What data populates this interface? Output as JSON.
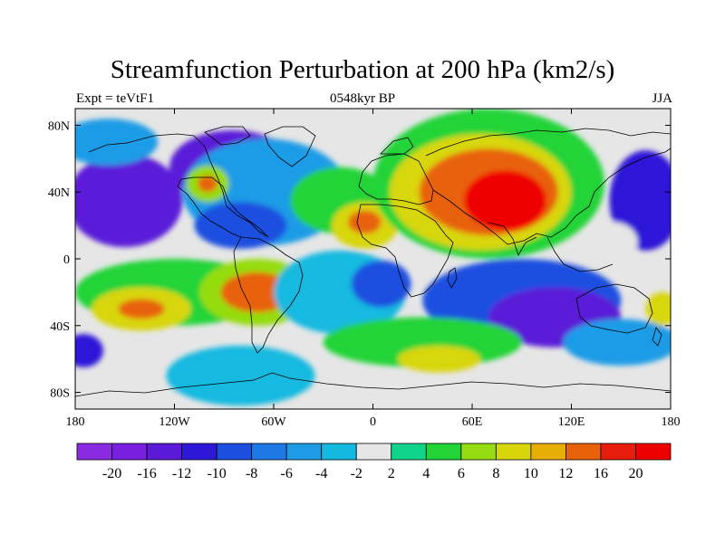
{
  "title": "Streamfunction Perturbation at 200 hPa (km2/s)",
  "subtitle_left": "Expt = teVtF1",
  "subtitle_center": "0548kyr BP",
  "subtitle_right": "JJA",
  "map": {
    "projection": "cylindrical equidistant",
    "lon_range": [
      -180,
      180
    ],
    "lat_range": [
      -90,
      90
    ],
    "x_ticks": [
      {
        "lon": -180,
        "label": "180"
      },
      {
        "lon": -120,
        "label": "120W"
      },
      {
        "lon": -60,
        "label": "60W"
      },
      {
        "lon": 0,
        "label": "0"
      },
      {
        "lon": 60,
        "label": "60E"
      },
      {
        "lon": 120,
        "label": "120E"
      },
      {
        "lon": 180,
        "label": "180"
      }
    ],
    "y_ticks": [
      {
        "lat": 80,
        "label": "80N"
      },
      {
        "lat": 40,
        "label": "40N"
      },
      {
        "lat": 0,
        "label": "0"
      },
      {
        "lat": -40,
        "label": "40S"
      },
      {
        "lat": -80,
        "label": "80S"
      }
    ],
    "background_color": "#e6e6e6"
  },
  "colorbar": {
    "labels": [
      "-20",
      "-16",
      "-12",
      "-10",
      "-8",
      "-6",
      "-4",
      "-2",
      "2",
      "4",
      "6",
      "8",
      "10",
      "12",
      "16",
      "20"
    ],
    "colors": [
      "#8a2be2",
      "#7a1fe0",
      "#5a1ad8",
      "#2d18d8",
      "#1b4fe0",
      "#1e78e6",
      "#1e9be6",
      "#14b9e0",
      "#e6e6e6",
      "#10d48c",
      "#22d438",
      "#95dc10",
      "#d8d60a",
      "#e8ae08",
      "#e8620a",
      "#e61c0c",
      "#ee0000"
    ]
  },
  "features": [
    {
      "lon": -150,
      "lat": 35,
      "rx": 35,
      "ry": 28,
      "value": -16
    },
    {
      "lon": 165,
      "lat": 35,
      "rx": 22,
      "ry": 30,
      "value": -12
    },
    {
      "lon": -85,
      "lat": 55,
      "rx": 38,
      "ry": 22,
      "value": -16
    },
    {
      "lon": -65,
      "lat": 40,
      "rx": 50,
      "ry": 32,
      "value": -6
    },
    {
      "lon": -80,
      "lat": 20,
      "rx": 28,
      "ry": 14,
      "value": -10
    },
    {
      "lon": -160,
      "lat": 70,
      "rx": 30,
      "ry": 14,
      "value": -6
    },
    {
      "lon": -100,
      "lat": 45,
      "rx": 13,
      "ry": 11,
      "value": 6
    },
    {
      "lon": -100,
      "lat": 45,
      "rx": 6,
      "ry": 5,
      "value": 12
    },
    {
      "lon": -20,
      "lat": 35,
      "rx": 30,
      "ry": 20,
      "value": 4
    },
    {
      "lon": -5,
      "lat": 20,
      "rx": 20,
      "ry": 14,
      "value": 8
    },
    {
      "lon": -5,
      "lat": 22,
      "rx": 10,
      "ry": 7,
      "value": 12
    },
    {
      "lon": 70,
      "lat": 45,
      "rx": 70,
      "ry": 45,
      "value": 4
    },
    {
      "lon": 65,
      "lat": 40,
      "rx": 55,
      "ry": 35,
      "value": 8
    },
    {
      "lon": 70,
      "lat": 40,
      "rx": 42,
      "ry": 26,
      "value": 12
    },
    {
      "lon": 80,
      "lat": 35,
      "rx": 25,
      "ry": 18,
      "value": 20
    },
    {
      "lon": 145,
      "lat": 10,
      "rx": 15,
      "ry": 12,
      "value": -2
    },
    {
      "lon": -120,
      "lat": -20,
      "rx": 60,
      "ry": 20,
      "value": 4
    },
    {
      "lon": -140,
      "lat": -30,
      "rx": 30,
      "ry": 13,
      "value": 8
    },
    {
      "lon": -140,
      "lat": -30,
      "rx": 14,
      "ry": 6,
      "value": 12
    },
    {
      "lon": -70,
      "lat": -20,
      "rx": 35,
      "ry": 20,
      "value": 6
    },
    {
      "lon": -70,
      "lat": -20,
      "rx": 22,
      "ry": 12,
      "value": 12
    },
    {
      "lon": -80,
      "lat": -70,
      "rx": 45,
      "ry": 18,
      "value": -4
    },
    {
      "lon": -20,
      "lat": -20,
      "rx": 40,
      "ry": 25,
      "value": -4
    },
    {
      "lon": 5,
      "lat": -15,
      "rx": 18,
      "ry": 14,
      "value": -10
    },
    {
      "lon": 90,
      "lat": -25,
      "rx": 60,
      "ry": 25,
      "value": -10
    },
    {
      "lon": 110,
      "lat": -35,
      "rx": 40,
      "ry": 18,
      "value": -16
    },
    {
      "lon": 30,
      "lat": -50,
      "rx": 60,
      "ry": 15,
      "value": 4
    },
    {
      "lon": 40,
      "lat": -60,
      "rx": 25,
      "ry": 8,
      "value": 8
    },
    {
      "lon": 150,
      "lat": -50,
      "rx": 35,
      "ry": 14,
      "value": -6
    },
    {
      "lon": -175,
      "lat": -55,
      "rx": 12,
      "ry": 10,
      "value": -12
    },
    {
      "lon": 175,
      "lat": -30,
      "rx": 10,
      "ry": 10,
      "value": 8
    }
  ]
}
